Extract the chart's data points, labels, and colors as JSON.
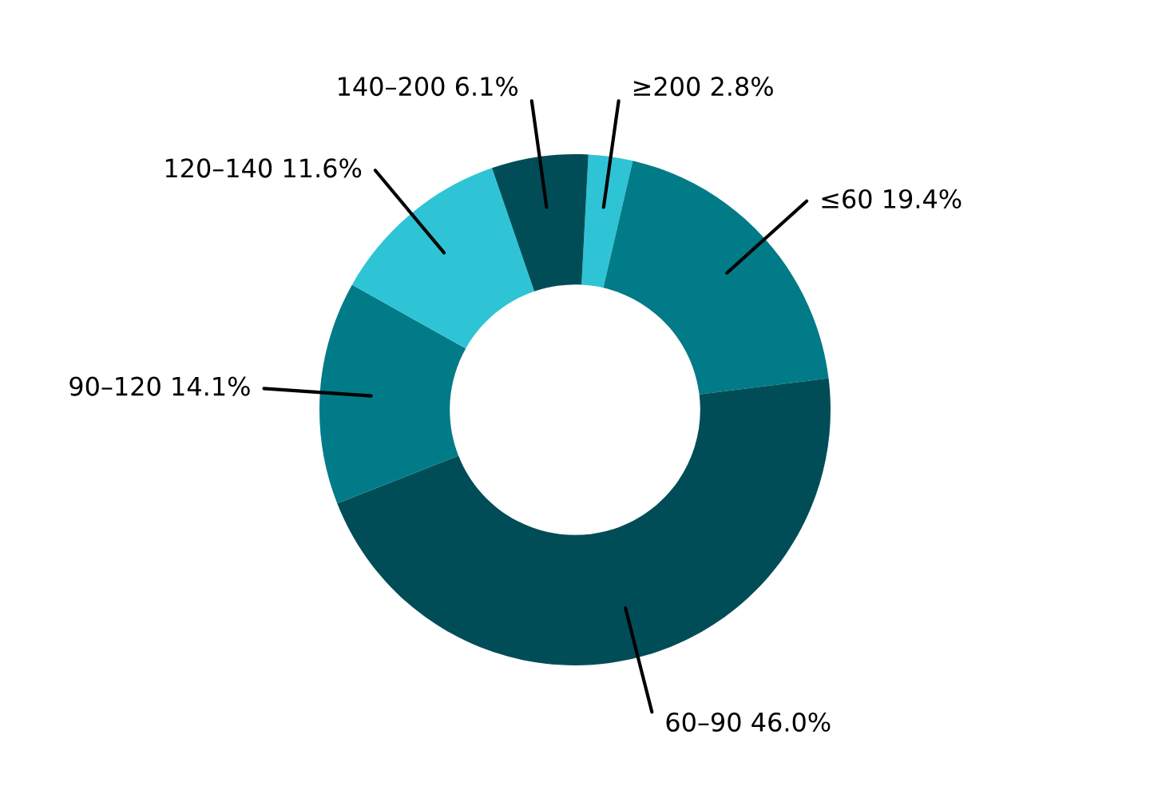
{
  "chart_data": {
    "type": "donut",
    "categories": [
      "≥200",
      "≤60",
      "60–90",
      "90–120",
      "120–140",
      "140–200"
    ],
    "values": [
      2.8,
      19.4,
      46.0,
      14.1,
      11.6,
      6.1
    ],
    "value_labels": [
      "2.8%",
      "19.4%",
      "46.0%",
      "14.1%",
      "11.6%",
      "6.1%"
    ],
    "colors": [
      "#2ec4d6",
      "#007b87",
      "#004d58",
      "#007b87",
      "#2ec4d6",
      "#004d58"
    ]
  }
}
